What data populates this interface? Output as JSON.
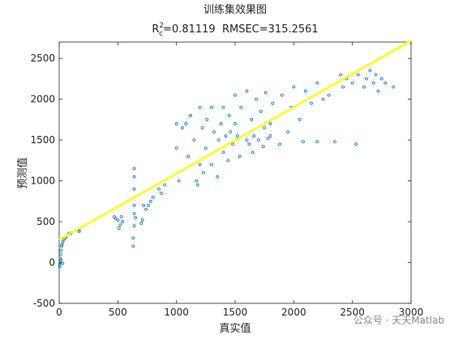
{
  "chart_data": {
    "type": "scatter",
    "title": "训练集效果图",
    "subtitle": {
      "base": "R",
      "sup": "2",
      "sub": "c",
      "rest": "=0.81119  RMSEC=315.2561"
    },
    "xlabel": "真实值",
    "ylabel": "预测值",
    "watermark": "公众号 · 天天Matlab",
    "xlim": [
      0,
      3000
    ],
    "ylim": [
      -500,
      2700
    ],
    "xticks": [
      0,
      500,
      1000,
      1500,
      2000,
      2500,
      3000
    ],
    "yticks": [
      -500,
      0,
      500,
      1000,
      1500,
      2000,
      2500
    ],
    "series": [
      {
        "color": "#0072bd",
        "marker": "circle",
        "x": [
          5,
          8,
          10,
          12,
          15,
          20,
          25,
          30,
          40,
          50,
          60,
          80,
          100,
          170,
          170,
          5,
          15,
          30,
          470,
          480,
          500,
          510,
          520,
          530,
          540,
          630,
          630,
          640,
          640,
          640,
          640,
          640,
          640,
          650,
          700,
          710,
          720,
          740,
          760,
          780,
          800,
          850,
          870,
          900,
          1000,
          1000,
          1020,
          1050,
          1080,
          1100,
          1120,
          1150,
          1170,
          1180,
          1200,
          1200,
          1220,
          1230,
          1250,
          1260,
          1300,
          1300,
          1320,
          1350,
          1360,
          1380,
          1400,
          1400,
          1420,
          1440,
          1450,
          1460,
          1480,
          1500,
          1500,
          1520,
          1540,
          1550,
          1600,
          1600,
          1620,
          1640,
          1650,
          1660,
          1680,
          1700,
          1720,
          1740,
          1750,
          1760,
          1780,
          1800,
          1800,
          1820,
          1880,
          1900,
          1950,
          1980,
          2000,
          2050,
          2080,
          2100,
          2150,
          2200,
          2200,
          2250,
          2300,
          2350,
          2400,
          2420,
          2450,
          2500,
          2530,
          2550,
          2600,
          2620,
          2650,
          2680,
          2700,
          2720,
          2750,
          2780,
          2850
        ],
        "values": [
          -50,
          0,
          50,
          100,
          150,
          200,
          220,
          250,
          280,
          300,
          320,
          350,
          360,
          380,
          400,
          -20,
          30,
          -10,
          560,
          540,
          520,
          420,
          460,
          560,
          500,
          200,
          300,
          450,
          600,
          700,
          900,
          1050,
          1150,
          550,
          480,
          520,
          700,
          650,
          700,
          750,
          800,
          900,
          850,
          950,
          1400,
          1700,
          1000,
          1650,
          1700,
          1300,
          1800,
          1500,
          1000,
          950,
          1900,
          1200,
          1650,
          1100,
          1400,
          1750,
          1200,
          1900,
          1600,
          1050,
          1500,
          1700,
          1350,
          1900,
          1550,
          1250,
          1800,
          1600,
          1450,
          2050,
          1700,
          1550,
          1300,
          1900,
          1500,
          2100,
          1450,
          1750,
          1350,
          1550,
          2000,
          1500,
          1850,
          1420,
          1650,
          2080,
          1520,
          1700,
          1550,
          1950,
          1450,
          2050,
          1600,
          1900,
          2150,
          1750,
          1480,
          2100,
          1950,
          1480,
          2200,
          2000,
          2050,
          1480,
          2300,
          2150,
          2250,
          2200,
          1450,
          2300,
          2150,
          2250,
          2350,
          2200,
          2300,
          2100,
          2250,
          2200,
          2150
        ]
      },
      {
        "color": "#ffff00",
        "marker": "line",
        "x": [
          0,
          3000
        ],
        "values": [
          280,
          2720
        ]
      }
    ]
  }
}
